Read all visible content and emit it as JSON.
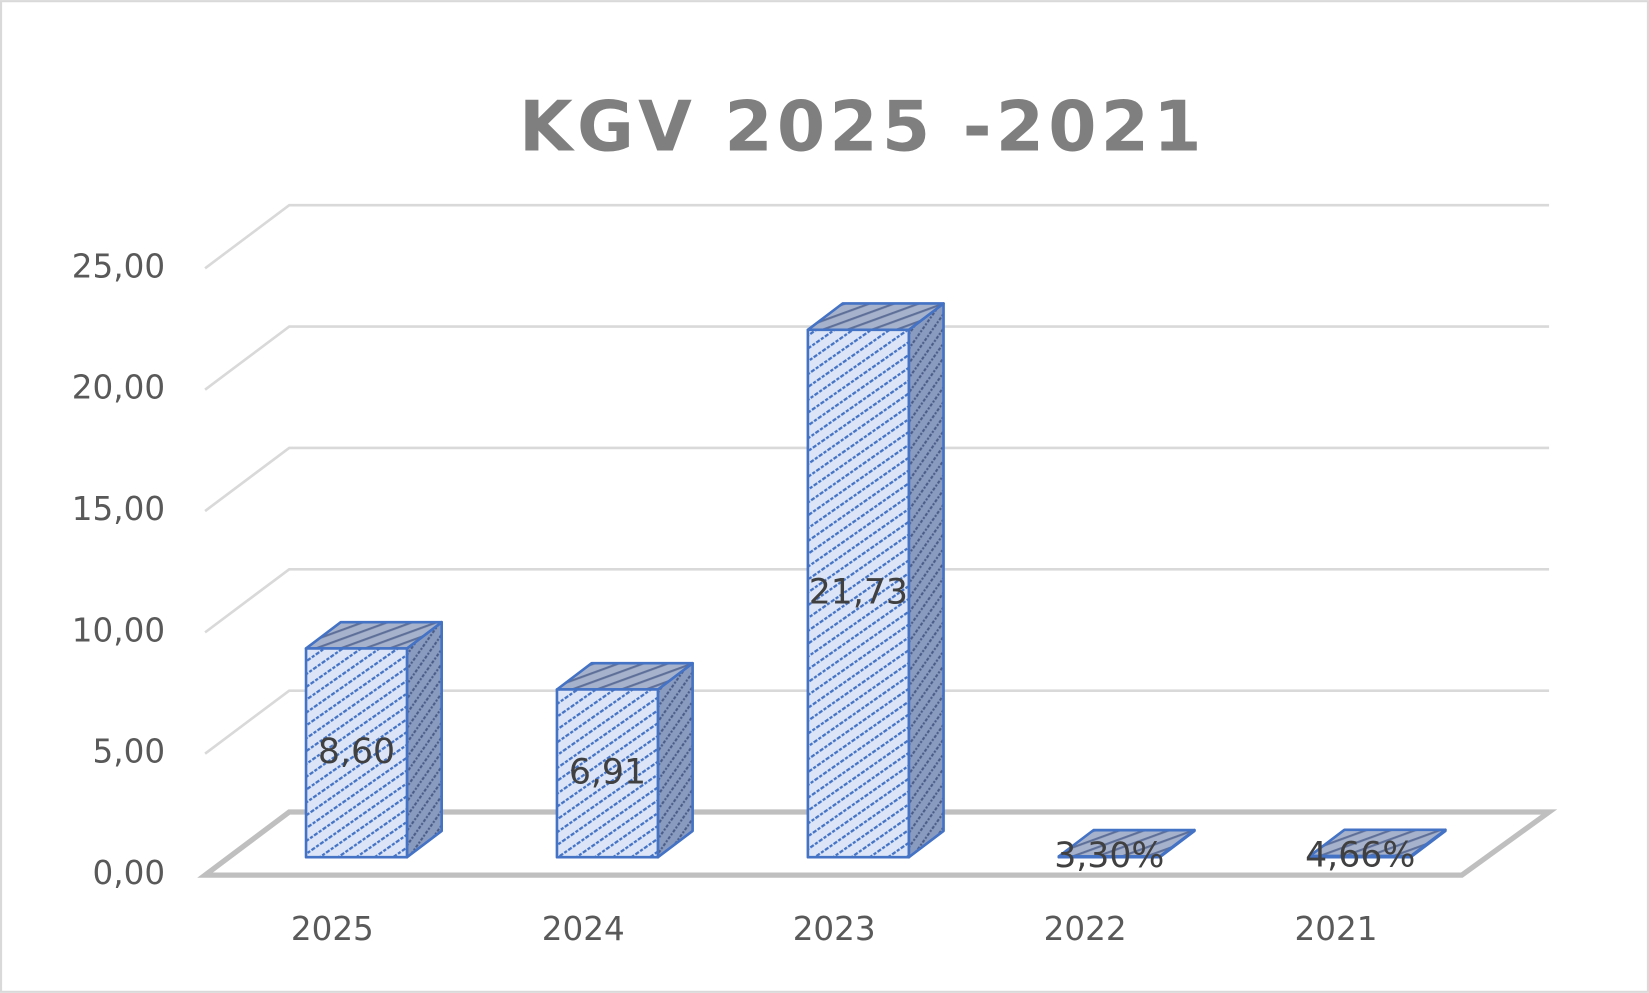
{
  "chart_data": {
    "type": "bar",
    "title": "KGV 2025 -2021",
    "categories": [
      "2025",
      "2024",
      "2023",
      "2022",
      "2021"
    ],
    "values": [
      8.6,
      6.91,
      21.73,
      0.033,
      0.0466
    ],
    "value_labels": [
      "8,60",
      "6,91",
      "21,73",
      "3,30%",
      "4,66%"
    ],
    "color": "#4472c4",
    "ylim": [
      0,
      25
    ],
    "yticks": [
      {
        "value": 0,
        "label": "0,00"
      },
      {
        "value": 5,
        "label": "5,00"
      },
      {
        "value": 10,
        "label": "10,00"
      },
      {
        "value": 15,
        "label": "15,00"
      },
      {
        "value": 20,
        "label": "20,00"
      },
      {
        "value": 25,
        "label": "25,00"
      }
    ],
    "grid": true
  }
}
